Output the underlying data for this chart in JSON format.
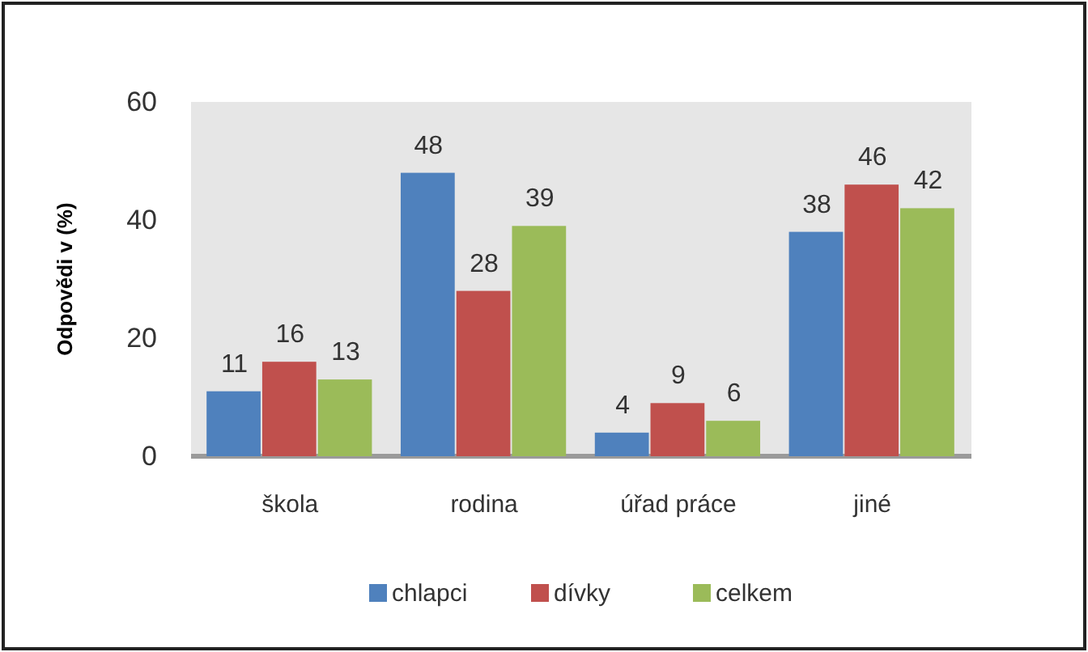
{
  "chart_data": {
    "type": "bar",
    "ylabel": "Odpovědi v (%)",
    "categories": [
      "škola",
      "rodina",
      "úřad práce",
      "jiné"
    ],
    "series": [
      {
        "name": "chlapci",
        "color": "#4f81bd",
        "values": [
          11,
          48,
          4,
          38
        ]
      },
      {
        "name": "dívky",
        "color": "#c0504d",
        "values": [
          16,
          28,
          9,
          46
        ]
      },
      {
        "name": "celkem",
        "color": "#9bbb59",
        "values": [
          13,
          39,
          6,
          42
        ]
      }
    ],
    "ylim": [
      0,
      60
    ],
    "yticks": [
      0,
      20,
      40,
      60
    ],
    "data_labels": true,
    "legend": "bottom"
  }
}
